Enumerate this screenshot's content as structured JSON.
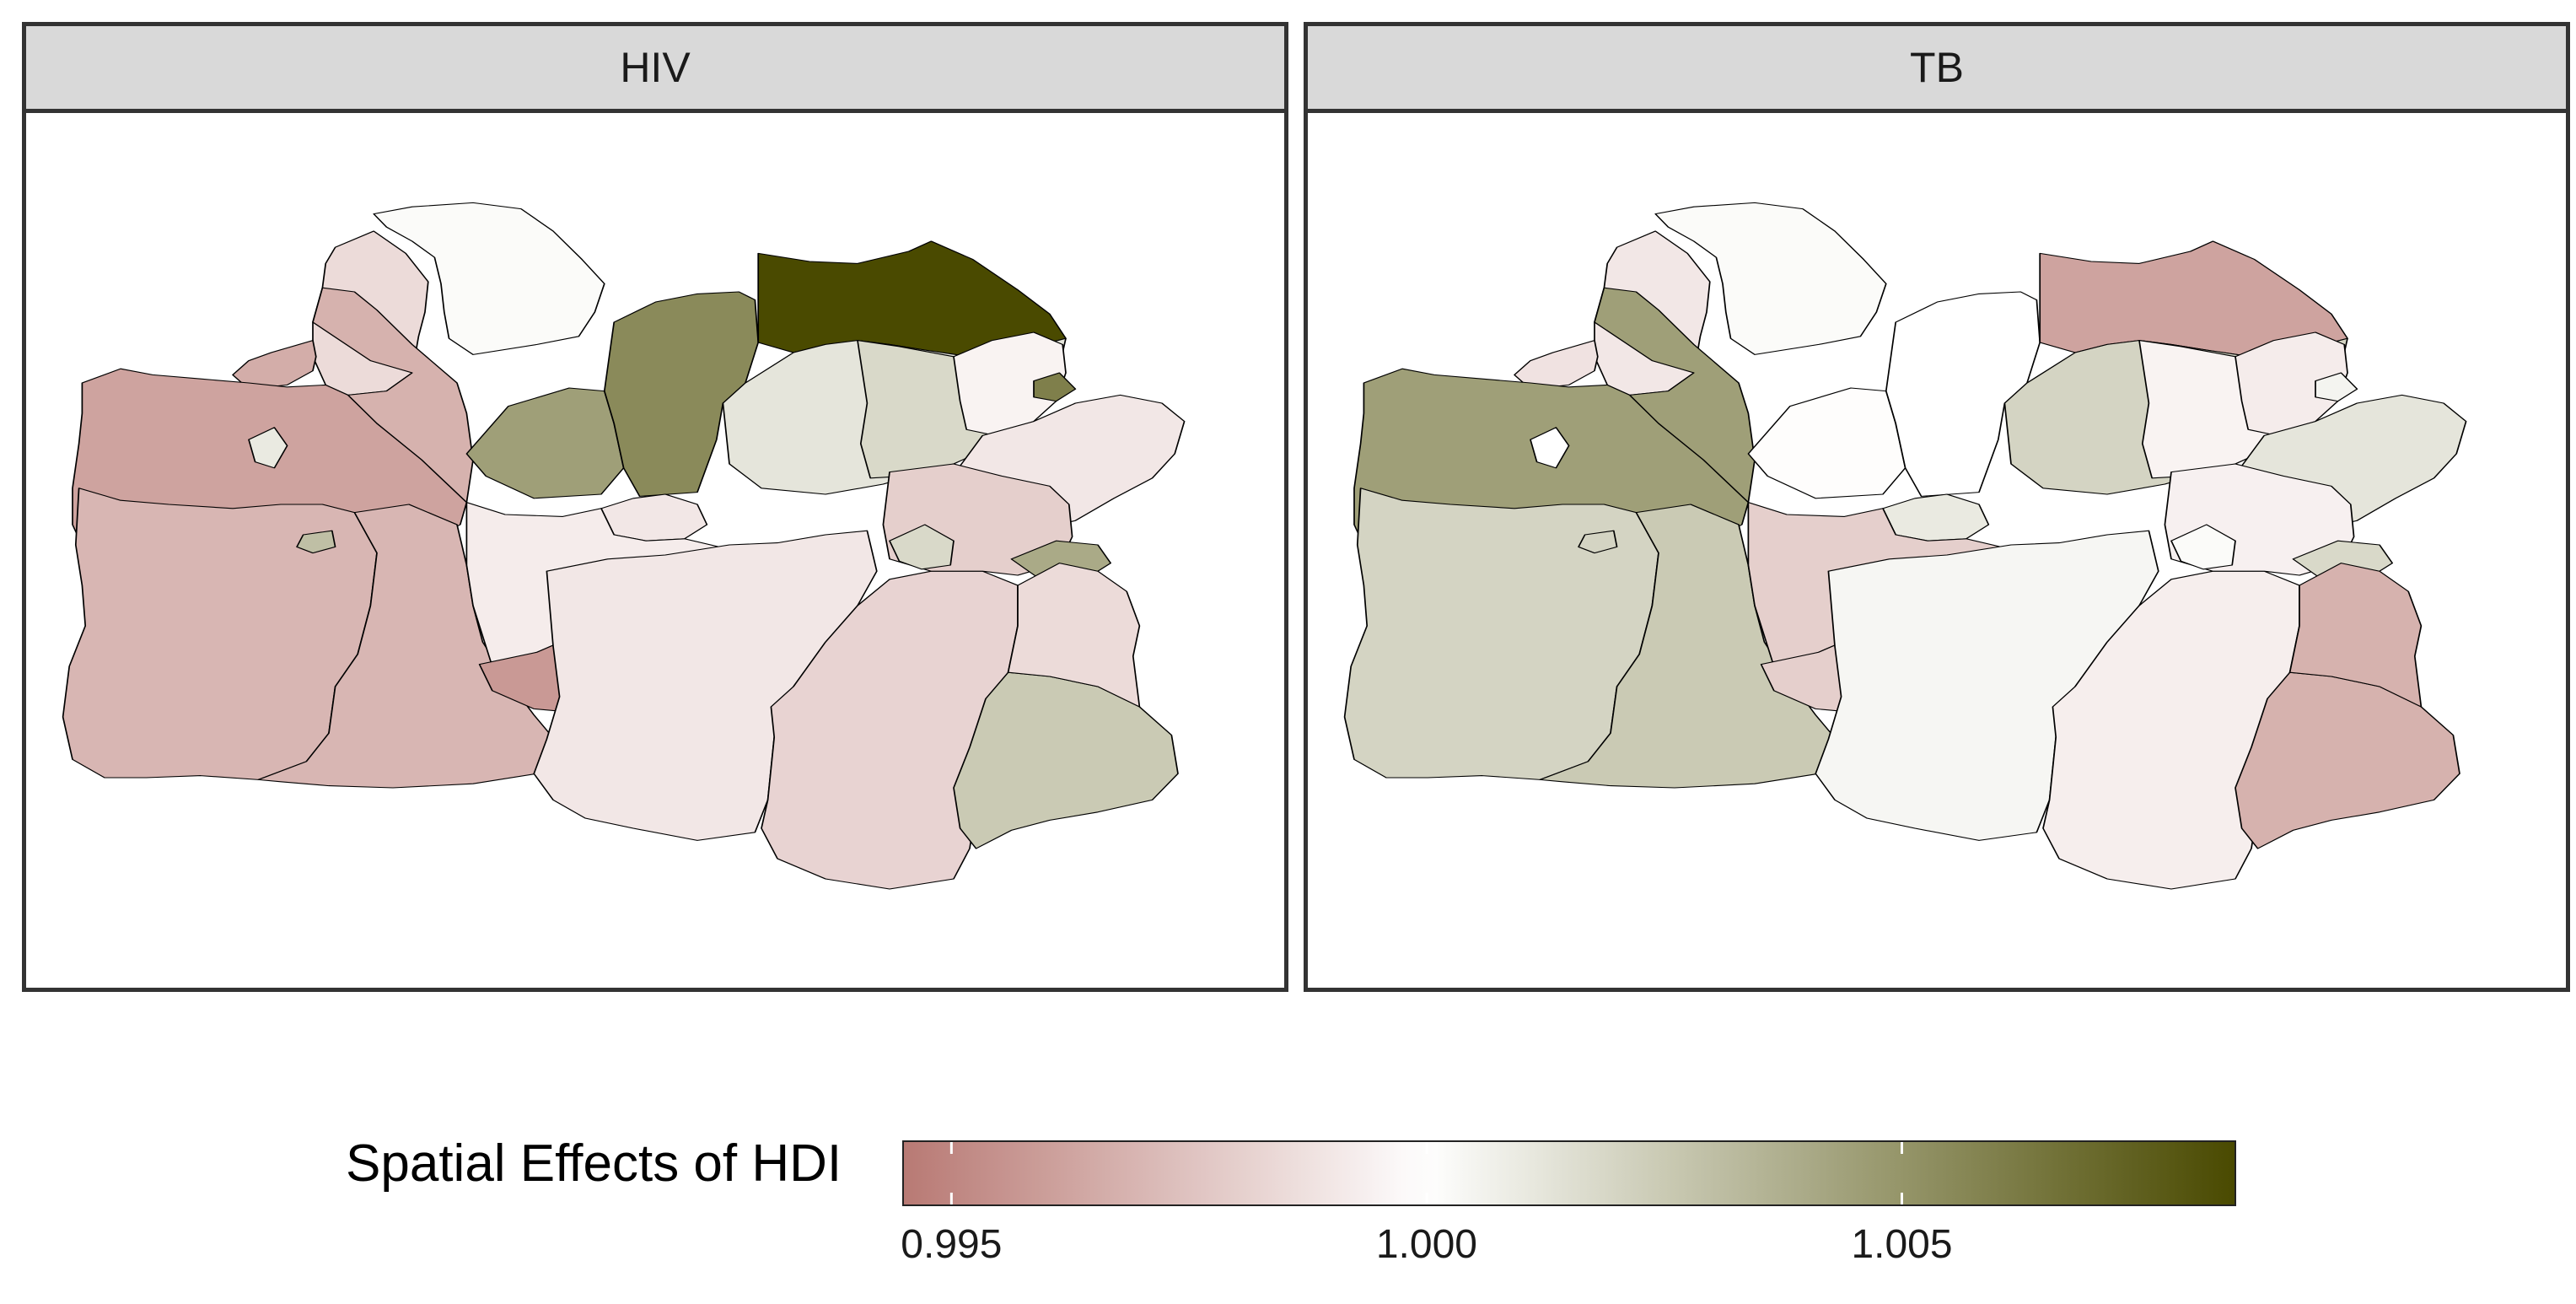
{
  "panels": [
    {
      "title": "HIV",
      "region_effects": {
        "north_coast_top": 1.0002,
        "northwest_strip": 0.9985,
        "small_city_nw": 0.9966,
        "far_west_block": 0.9962,
        "west_upper_mid": 0.9968,
        "enclave_west": 1.001,
        "center_west_upper": 1.0045,
        "center_north": 1.0055,
        "northeast_coast": 1.009,
        "west_lower": 0.997,
        "enclave_west_lower": 1.003,
        "south_west_center": 0.997,
        "small_city_mid": 0.999,
        "center_mid": 0.9992,
        "city_dark_mid": 0.9958,
        "center_east_mid": 1.0012,
        "east_mid_light": 1.0018,
        "east_upper": 0.9995,
        "east_edge_small": 1.006,
        "east_far": 0.999,
        "south_center": 0.999,
        "south_east_center": 0.9982,
        "south_east_right": 0.998,
        "enclave_south": 1.0018,
        "small_east_enclave": 1.004,
        "southeast_tip": 1.0025,
        "south_east_lower": 0.9985
      }
    },
    {
      "title": "TB",
      "region_effects": {
        "north_coast_top": 1.0002,
        "northwest_strip": 0.999,
        "small_city_nw": 0.9988,
        "far_west_block": 1.0045,
        "west_upper_mid": 1.0045,
        "enclave_west": 1.0,
        "center_west_upper": 0.9999,
        "center_north": 1.0,
        "northeast_coast": 0.9962,
        "west_lower": 1.002,
        "enclave_west_lower": 1.002,
        "south_west_center": 1.0025,
        "small_city_mid": 1.001,
        "center_mid": 0.998,
        "city_dark_mid": 0.998,
        "center_east_mid": 1.002,
        "east_mid_light": 0.9995,
        "east_upper": 0.9992,
        "east_edge_small": 1.0005,
        "east_far": 1.0012,
        "south_center": 1.0004,
        "south_east_center": 0.9993,
        "south_east_right": 0.9994,
        "enclave_south": 1.0002,
        "small_east_enclave": 1.0018,
        "southeast_tip": 0.9968,
        "south_east_lower": 0.9968
      }
    }
  ],
  "legend": {
    "title": "Spatial Effects of HDI",
    "min": 0.9945,
    "max": 1.0085,
    "ticks": [
      {
        "value": 0.995,
        "label": "0.995"
      },
      {
        "value": 1.0,
        "label": "1.000"
      },
      {
        "value": 1.005,
        "label": "1.005"
      }
    ],
    "color_low": "#b87a74",
    "color_mid": "#ffffff",
    "color_high": "#4a4a00"
  }
}
